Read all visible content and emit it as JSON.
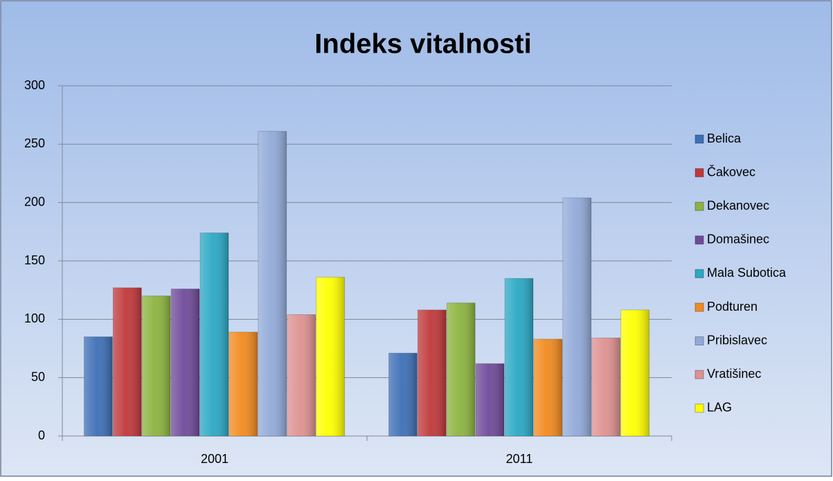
{
  "chart_data": {
    "type": "bar",
    "title": "Indeks vitalnosti",
    "categories": [
      "2001",
      "2011"
    ],
    "series": [
      {
        "name": "Belica",
        "color": "#3d6fb6",
        "values": [
          85,
          71
        ]
      },
      {
        "name": "Čakovec",
        "color": "#c0383a",
        "values": [
          127,
          108
        ]
      },
      {
        "name": "Dekanovec",
        "color": "#8db33f",
        "values": [
          120,
          114
        ]
      },
      {
        "name": "Domašinec",
        "color": "#6f4a99",
        "values": [
          126,
          62
        ]
      },
      {
        "name": "Mala Subotica",
        "color": "#2aa8c4",
        "values": [
          174,
          135
        ]
      },
      {
        "name": "Podturen",
        "color": "#f28a1e",
        "values": [
          89,
          83
        ]
      },
      {
        "name": "Pribislavec",
        "color": "#92aad9",
        "values": [
          261,
          204
        ]
      },
      {
        "name": "Vratišinec",
        "color": "#dd9190",
        "values": [
          104,
          84
        ]
      },
      {
        "name": "LAG",
        "color": "#ffff00",
        "values": [
          136,
          108
        ]
      }
    ],
    "ylim": [
      0,
      300
    ],
    "yticks": [
      0,
      50,
      100,
      150,
      200,
      250,
      300
    ],
    "grid": true,
    "legend": "right"
  }
}
